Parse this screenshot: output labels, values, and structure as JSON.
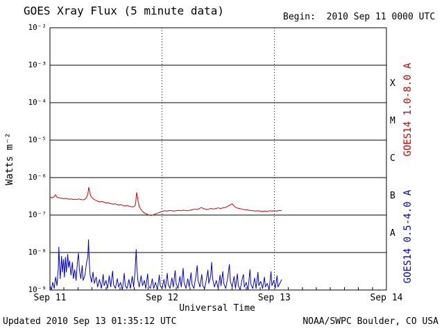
{
  "header": {
    "title": "GOES Xray Flux (5 minute data)",
    "begin_label": "Begin:  2010 Sep 11 0000 UTC"
  },
  "footer": {
    "updated": "Updated 2010 Sep 13 01:35:12 UTC",
    "source": "NOAA/SWPC Boulder, CO USA"
  },
  "chart_data": {
    "type": "line",
    "title": "GOES Xray Flux (5 minute data)",
    "begin": "2010 Sep 11 0000 UTC",
    "updated": "2010 Sep 13 01:35:12 UTC",
    "xlabel": "Universal Time",
    "ylabel": "Watts m⁻²",
    "x_total_hours": 72,
    "x_ticks": [
      "Sep 11",
      "Sep 12",
      "Sep 13",
      "Sep 14"
    ],
    "y_log_range": [
      -9,
      -2
    ],
    "y_ticks": [
      {
        "label": "10⁻²",
        "log": -2
      },
      {
        "label": "10⁻³",
        "log": -3
      },
      {
        "label": "10⁻⁴",
        "log": -4
      },
      {
        "label": "10⁻⁵",
        "log": -5
      },
      {
        "label": "10⁻⁶",
        "log": -6
      },
      {
        "label": "10⁻⁷",
        "log": -7
      },
      {
        "label": "10⁻⁸",
        "log": -8
      },
      {
        "label": "10⁻⁹",
        "log": -9
      }
    ],
    "flare_classes": [
      {
        "label": "X",
        "log_center": -3.5
      },
      {
        "label": "M",
        "log_center": -4.5
      },
      {
        "label": "C",
        "log_center": -5.5
      },
      {
        "label": "B",
        "log_center": -6.5
      },
      {
        "label": "A",
        "log_center": -7.5
      }
    ],
    "grid": {
      "horizontal": "solid line per decade",
      "vertical": "dashed line per day boundary"
    },
    "series": [
      {
        "name": "GOES14 1.0-8.0 A",
        "color": "#cc0000",
        "points": [
          [
            0,
            3e-07
          ],
          [
            0.4,
            2.9e-07
          ],
          [
            0.8,
            3e-07
          ],
          [
            1.0,
            3.2e-07
          ],
          [
            1.2,
            3.5e-07
          ],
          [
            1.5,
            3e-07
          ],
          [
            1.8,
            2.9e-07
          ],
          [
            2.2,
            2.85e-07
          ],
          [
            2.6,
            2.8e-07
          ],
          [
            3.0,
            2.75e-07
          ],
          [
            3.4,
            2.8e-07
          ],
          [
            3.8,
            2.7e-07
          ],
          [
            4.2,
            2.65e-07
          ],
          [
            4.6,
            2.7e-07
          ],
          [
            5.0,
            2.6e-07
          ],
          [
            5.4,
            2.65e-07
          ],
          [
            5.8,
            2.6e-07
          ],
          [
            6.2,
            2.7e-07
          ],
          [
            6.6,
            2.6e-07
          ],
          [
            7.0,
            2.55e-07
          ],
          [
            7.4,
            2.6e-07
          ],
          [
            7.8,
            2.9e-07
          ],
          [
            8.1,
            3.6e-07
          ],
          [
            8.3,
            5.5e-07
          ],
          [
            8.5,
            4.2e-07
          ],
          [
            8.7,
            3.3e-07
          ],
          [
            9.0,
            2.9e-07
          ],
          [
            9.3,
            2.7e-07
          ],
          [
            9.6,
            2.55e-07
          ],
          [
            10.0,
            2.4e-07
          ],
          [
            10.4,
            2.3e-07
          ],
          [
            10.8,
            2.25e-07
          ],
          [
            11.2,
            2.3e-07
          ],
          [
            11.6,
            2.2e-07
          ],
          [
            12.0,
            2.1e-07
          ],
          [
            12.4,
            2.15e-07
          ],
          [
            12.8,
            2.05e-07
          ],
          [
            13.2,
            2e-07
          ],
          [
            13.6,
            1.95e-07
          ],
          [
            14.0,
            2e-07
          ],
          [
            14.4,
            1.9e-07
          ],
          [
            14.8,
            1.85e-07
          ],
          [
            15.2,
            1.9e-07
          ],
          [
            15.6,
            1.8e-07
          ],
          [
            16.0,
            1.75e-07
          ],
          [
            16.4,
            1.8e-07
          ],
          [
            16.8,
            1.75e-07
          ],
          [
            17.2,
            1.7e-07
          ],
          [
            17.6,
            1.65e-07
          ],
          [
            18.0,
            1.7e-07
          ],
          [
            18.3,
            1.9e-07
          ],
          [
            18.45,
            3e-07
          ],
          [
            18.55,
            4e-07
          ],
          [
            18.7,
            3.2e-07
          ],
          [
            18.9,
            2.2e-07
          ],
          [
            19.1,
            1.7e-07
          ],
          [
            19.4,
            1.45e-07
          ],
          [
            19.7,
            1.3e-07
          ],
          [
            20.0,
            1.2e-07
          ],
          [
            20.4,
            1.1e-07
          ],
          [
            20.8,
            1.05e-07
          ],
          [
            21.2,
            1e-07
          ],
          [
            21.6,
            9.8e-08
          ],
          [
            22.0,
            1e-07
          ],
          [
            22.4,
            1.05e-07
          ],
          [
            22.8,
            1.1e-07
          ],
          [
            23.2,
            1.15e-07
          ],
          [
            23.6,
            1.2e-07
          ],
          [
            24.0,
            1.25e-07
          ],
          [
            24.5,
            1.3e-07
          ],
          [
            25.0,
            1.28e-07
          ],
          [
            25.5,
            1.32e-07
          ],
          [
            26.0,
            1.3e-07
          ],
          [
            26.5,
            1.28e-07
          ],
          [
            27.0,
            1.3e-07
          ],
          [
            27.5,
            1.33e-07
          ],
          [
            28.0,
            1.3e-07
          ],
          [
            28.5,
            1.35e-07
          ],
          [
            29.0,
            1.32e-07
          ],
          [
            29.5,
            1.3e-07
          ],
          [
            30.0,
            1.35e-07
          ],
          [
            30.5,
            1.4e-07
          ],
          [
            31.0,
            1.45e-07
          ],
          [
            31.5,
            1.4e-07
          ],
          [
            32.0,
            1.5e-07
          ],
          [
            32.4,
            1.6e-07
          ],
          [
            32.8,
            1.5e-07
          ],
          [
            33.2,
            1.45e-07
          ],
          [
            33.6,
            1.4e-07
          ],
          [
            34.0,
            1.45e-07
          ],
          [
            34.5,
            1.5e-07
          ],
          [
            35.0,
            1.45e-07
          ],
          [
            35.5,
            1.5e-07
          ],
          [
            36.0,
            1.55e-07
          ],
          [
            36.5,
            1.5e-07
          ],
          [
            37.0,
            1.55e-07
          ],
          [
            37.5,
            1.6e-07
          ],
          [
            38.0,
            1.7e-07
          ],
          [
            38.5,
            1.85e-07
          ],
          [
            39.0,
            2e-07
          ],
          [
            39.3,
            1.8e-07
          ],
          [
            39.6,
            1.65e-07
          ],
          [
            40.0,
            1.55e-07
          ],
          [
            40.5,
            1.5e-07
          ],
          [
            41.0,
            1.45e-07
          ],
          [
            41.5,
            1.4e-07
          ],
          [
            42.0,
            1.38e-07
          ],
          [
            42.5,
            1.35e-07
          ],
          [
            43.0,
            1.32e-07
          ],
          [
            43.5,
            1.3e-07
          ],
          [
            44.0,
            1.28e-07
          ],
          [
            44.5,
            1.3e-07
          ],
          [
            45.0,
            1.27e-07
          ],
          [
            45.5,
            1.25e-07
          ],
          [
            46.0,
            1.28e-07
          ],
          [
            46.5,
            1.25e-07
          ],
          [
            47.0,
            1.3e-07
          ],
          [
            47.5,
            1.28e-07
          ],
          [
            48.0,
            1.3e-07
          ],
          [
            48.5,
            1.28e-07
          ],
          [
            49.0,
            1.32e-07
          ],
          [
            49.6,
            1.3e-07
          ]
        ]
      },
      {
        "name": "GOES14 0.5-4.0 A",
        "color": "#0000cc",
        "points": [
          [
            0,
            1.3e-09
          ],
          [
            0.3,
            1e-09
          ],
          [
            0.6,
            1.6e-09
          ],
          [
            0.9,
            1.1e-09
          ],
          [
            1.2,
            2.2e-09
          ],
          [
            1.5,
            1.3e-09
          ],
          [
            1.8,
            4e-09
          ],
          [
            1.9,
            1.4e-08
          ],
          [
            2.05,
            5e-09
          ],
          [
            2.2,
            2e-09
          ],
          [
            2.5,
            8e-09
          ],
          [
            2.65,
            3e-09
          ],
          [
            2.9,
            6.5e-09
          ],
          [
            3.1,
            2.2e-09
          ],
          [
            3.3,
            7.5e-09
          ],
          [
            3.5,
            3e-09
          ],
          [
            3.8,
            9e-09
          ],
          [
            4.0,
            4e-09
          ],
          [
            4.2,
            6e-09
          ],
          [
            4.5,
            2.5e-09
          ],
          [
            4.8,
            5.5e-09
          ],
          [
            5.0,
            2e-09
          ],
          [
            5.3,
            3.5e-09
          ],
          [
            5.6,
            1.8e-09
          ],
          [
            5.9,
            6e-09
          ],
          [
            6.1,
            9.5e-09
          ],
          [
            6.3,
            3.5e-09
          ],
          [
            6.6,
            2e-09
          ],
          [
            6.9,
            4.5e-09
          ],
          [
            7.1,
            1.8e-09
          ],
          [
            7.5,
            2.5e-09
          ],
          [
            7.8,
            5e-09
          ],
          [
            8.1,
            8e-09
          ],
          [
            8.25,
            2.2e-08
          ],
          [
            8.4,
            6e-09
          ],
          [
            8.6,
            2.5e-09
          ],
          [
            8.9,
            1.6e-09
          ],
          [
            9.2,
            3e-09
          ],
          [
            9.5,
            1.5e-09
          ],
          [
            9.9,
            2.2e-09
          ],
          [
            10.2,
            1.2e-09
          ],
          [
            10.6,
            1.9e-09
          ],
          [
            11.0,
            1.1e-09
          ],
          [
            11.4,
            2.6e-09
          ],
          [
            11.6,
            1.3e-09
          ],
          [
            12.0,
            1.8e-09
          ],
          [
            12.3,
            1.1e-09
          ],
          [
            12.7,
            2.4e-09
          ],
          [
            13.0,
            1.2e-09
          ],
          [
            13.4,
            3.2e-09
          ],
          [
            13.6,
            1.4e-09
          ],
          [
            14.0,
            1.1e-09
          ],
          [
            14.4,
            2e-09
          ],
          [
            14.7,
            1.2e-09
          ],
          [
            15.1,
            1.6e-09
          ],
          [
            15.5,
            1e-09
          ],
          [
            15.9,
            2.8e-09
          ],
          [
            16.1,
            1.3e-09
          ],
          [
            16.5,
            1.1e-09
          ],
          [
            16.9,
            1.9e-09
          ],
          [
            17.2,
            1.1e-09
          ],
          [
            17.6,
            2.3e-09
          ],
          [
            17.9,
            1.2e-09
          ],
          [
            18.2,
            3e-09
          ],
          [
            18.45,
            1.2e-08
          ],
          [
            18.6,
            4e-09
          ],
          [
            18.8,
            1.9e-09
          ],
          [
            19.1,
            1.2e-09
          ],
          [
            19.5,
            2.4e-09
          ],
          [
            19.8,
            1.3e-09
          ],
          [
            20.2,
            1.8e-09
          ],
          [
            20.5,
            1.1e-09
          ],
          [
            20.9,
            2.7e-09
          ],
          [
            21.1,
            1.3e-09
          ],
          [
            21.5,
            1.1e-09
          ],
          [
            21.9,
            2e-09
          ],
          [
            22.2,
            1.1e-09
          ],
          [
            22.6,
            1.6e-09
          ],
          [
            23.0,
            1e-09
          ],
          [
            23.4,
            2.5e-09
          ],
          [
            23.6,
            1.3e-09
          ],
          [
            24.0,
            1.1e-09
          ],
          [
            24.4,
            1.9e-09
          ],
          [
            24.7,
            1.1e-09
          ],
          [
            25.1,
            2.8e-09
          ],
          [
            25.3,
            1.4e-09
          ],
          [
            25.7,
            1.1e-09
          ],
          [
            26.1,
            2.1e-09
          ],
          [
            26.4,
            1.2e-09
          ],
          [
            26.8,
            3.3e-09
          ],
          [
            27.0,
            1.5e-09
          ],
          [
            27.4,
            1.1e-09
          ],
          [
            27.8,
            2.3e-09
          ],
          [
            28.1,
            1.2e-09
          ],
          [
            28.5,
            3.8e-09
          ],
          [
            28.7,
            1.6e-09
          ],
          [
            29.1,
            1.1e-09
          ],
          [
            29.5,
            2e-09
          ],
          [
            29.8,
            1.2e-09
          ],
          [
            30.2,
            2.9e-09
          ],
          [
            30.4,
            1.4e-09
          ],
          [
            30.8,
            1.1e-09
          ],
          [
            31.2,
            2.2e-09
          ],
          [
            31.5,
            4.5e-09
          ],
          [
            31.7,
            1.8e-09
          ],
          [
            32.1,
            1.2e-09
          ],
          [
            32.5,
            2.6e-09
          ],
          [
            32.7,
            1.3e-09
          ],
          [
            33.1,
            1.1e-09
          ],
          [
            33.5,
            2e-09
          ],
          [
            33.8,
            3.4e-09
          ],
          [
            34.0,
            1.5e-09
          ],
          [
            34.4,
            2.4e-09
          ],
          [
            34.6,
            5.5e-09
          ],
          [
            34.8,
            2e-09
          ],
          [
            35.2,
            1.2e-09
          ],
          [
            35.6,
            1.8e-09
          ],
          [
            36.0,
            1.1e-09
          ],
          [
            36.4,
            2.5e-09
          ],
          [
            36.6,
            1.3e-09
          ],
          [
            37.0,
            3.1e-09
          ],
          [
            37.2,
            1.5e-09
          ],
          [
            37.6,
            1.1e-09
          ],
          [
            38.0,
            2e-09
          ],
          [
            38.4,
            4.8e-09
          ],
          [
            38.6,
            1.7e-09
          ],
          [
            39.0,
            1.2e-09
          ],
          [
            39.4,
            2.3e-09
          ],
          [
            39.7,
            1.1e-09
          ],
          [
            40.1,
            2.7e-09
          ],
          [
            40.3,
            1.3e-09
          ],
          [
            40.7,
            1e-09
          ],
          [
            41.1,
            1.9e-09
          ],
          [
            41.4,
            2.6e-09
          ],
          [
            41.6,
            1.2e-09
          ],
          [
            42.0,
            1.6e-09
          ],
          [
            42.4,
            1e-09
          ],
          [
            42.8,
            3.5e-09
          ],
          [
            43.0,
            1.4e-09
          ],
          [
            43.4,
            1.1e-09
          ],
          [
            43.8,
            2.1e-09
          ],
          [
            44.1,
            1.1e-09
          ],
          [
            44.5,
            3e-09
          ],
          [
            44.7,
            1.3e-09
          ],
          [
            45.1,
            1.7e-09
          ],
          [
            45.5,
            1.1e-09
          ],
          [
            45.9,
            2.2e-09
          ],
          [
            46.1,
            1.2e-09
          ],
          [
            46.5,
            1.5e-09
          ],
          [
            46.9,
            1e-09
          ],
          [
            47.3,
            3.1e-09
          ],
          [
            47.5,
            1.3e-09
          ],
          [
            47.9,
            1.8e-09
          ],
          [
            48.2,
            1.1e-09
          ],
          [
            48.6,
            2.4e-09
          ],
          [
            48.8,
            1.2e-09
          ],
          [
            49.2,
            1.5e-09
          ],
          [
            49.6,
            1.9e-09
          ]
        ]
      }
    ]
  }
}
